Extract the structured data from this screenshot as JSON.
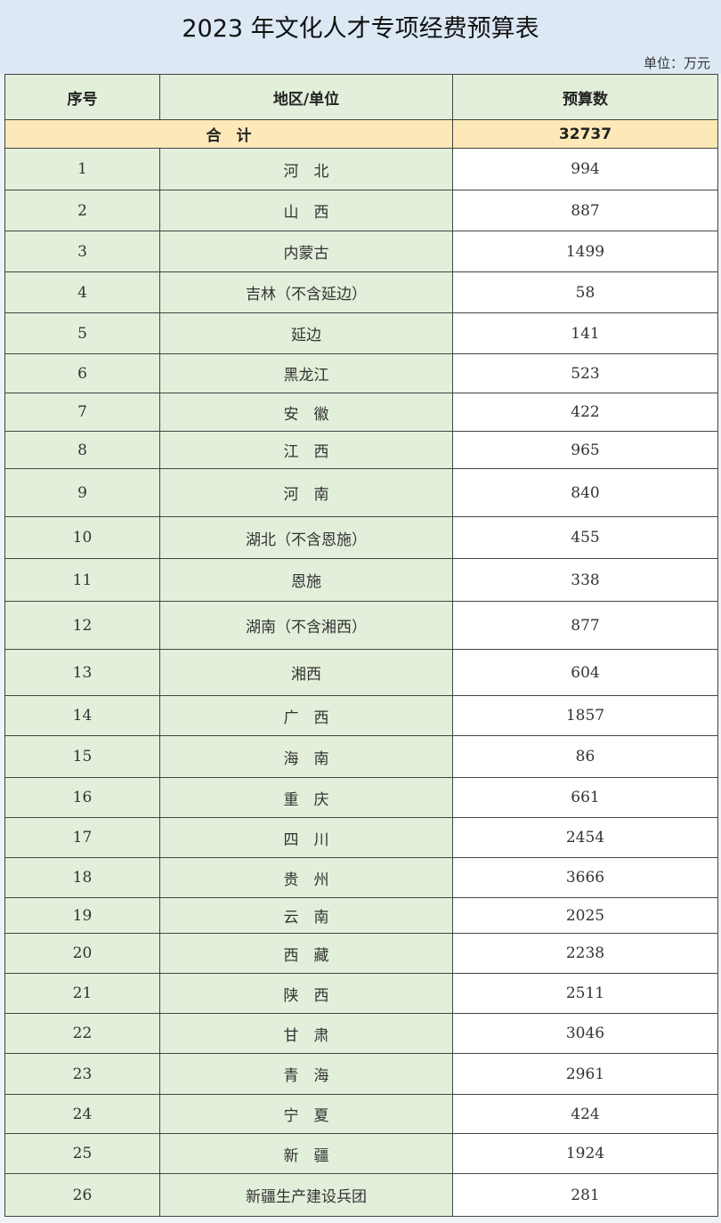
{
  "title": "2023 年文化人才专项经费预算表",
  "unit": "单位：万元",
  "headers": [
    "序号",
    "地区/单位",
    "预算数"
  ],
  "total": {
    "label": "合　计",
    "value": "32737"
  },
  "rows": [
    [
      "1",
      "河　北",
      "994"
    ],
    [
      "2",
      "山　西",
      "887"
    ],
    [
      "3",
      "内蒙古",
      "1499"
    ],
    [
      "4",
      "吉林（不含延边）",
      "58"
    ],
    [
      "5",
      "延边",
      "141"
    ],
    [
      "6",
      "黑龙江",
      "523"
    ],
    [
      "7",
      "安　徽",
      "422"
    ],
    [
      "8",
      "江　西",
      "965"
    ],
    [
      "9",
      "河　南",
      "840"
    ],
    [
      "10",
      "湖北（不含恩施）",
      "455"
    ],
    [
      "11",
      "恩施",
      "338"
    ],
    [
      "12",
      "湖南（不含湘西）",
      "877"
    ],
    [
      "13",
      "湘西",
      "604"
    ],
    [
      "14",
      "广　西",
      "1857"
    ],
    [
      "15",
      "海　南",
      "86"
    ],
    [
      "16",
      "重　庆",
      "661"
    ],
    [
      "17",
      "四　川",
      "2454"
    ],
    [
      "18",
      "贵　州",
      "3666"
    ],
    [
      "19",
      "云　南",
      "2025"
    ],
    [
      "20",
      "西　藏",
      "2238"
    ],
    [
      "21",
      "陕　西",
      "2511"
    ],
    [
      "22",
      "甘　肃",
      "3046"
    ],
    [
      "23",
      "青　海",
      "2961"
    ],
    [
      "24",
      "宁　夏",
      "424"
    ],
    [
      "25",
      "新　疆",
      "1924"
    ],
    [
      "26",
      "新疆生产建设兵团",
      "281"
    ]
  ]
}
